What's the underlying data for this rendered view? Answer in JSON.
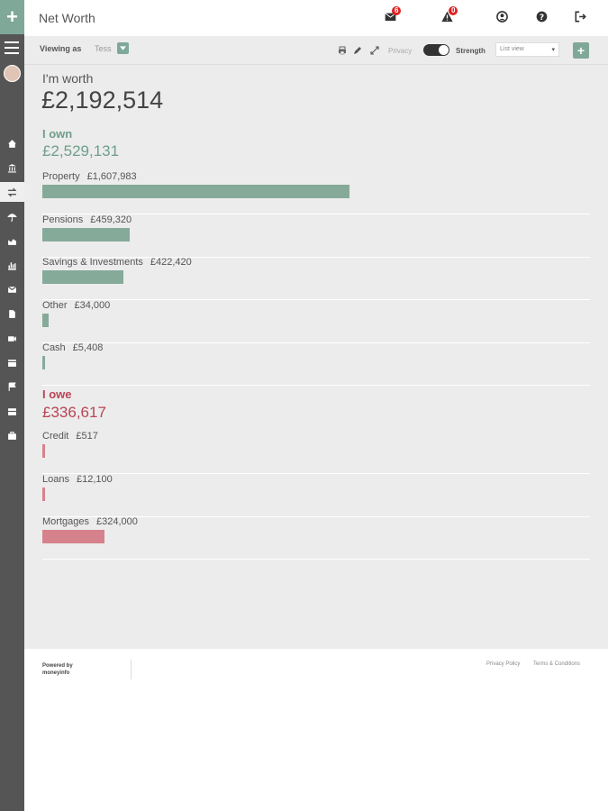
{
  "header": {
    "title": "Net Worth",
    "messages_badge": "6",
    "alerts_badge": "0"
  },
  "toolbar": {
    "viewing_label": "Viewing as",
    "viewing_name": "Tess",
    "privacy_label": "Privacy",
    "strength_label": "Strength",
    "view_select": "List view",
    "add_label": "+"
  },
  "summary": {
    "worth_label": "I'm worth",
    "worth_value": "£2,192,514"
  },
  "own": {
    "title": "I own",
    "total": "£2,529,131",
    "items": [
      {
        "label": "Property",
        "amount": "£1,607,983",
        "value": 1607983
      },
      {
        "label": "Pensions",
        "amount": "£459,320",
        "value": 459320
      },
      {
        "label": "Savings & Investments",
        "amount": "£422,420",
        "value": 422420
      },
      {
        "label": "Other",
        "amount": "£34,000",
        "value": 34000
      },
      {
        "label": "Cash",
        "amount": "£5,408",
        "value": 5408
      }
    ]
  },
  "owe": {
    "title": "I owe",
    "total": "£336,617",
    "items": [
      {
        "label": "Credit",
        "amount": "£517",
        "value": 517
      },
      {
        "label": "Loans",
        "amount": "£12,100",
        "value": 12100
      },
      {
        "label": "Mortgages",
        "amount": "£324,000",
        "value": 324000
      }
    ]
  },
  "footer": {
    "powered_line1": "Powered by",
    "powered_line2": "moneyinfo",
    "privacy_link": "Privacy Policy",
    "terms_link": "Terms & Conditions"
  },
  "colors": {
    "accent": "#7fa898",
    "own_bar": "#86aa9a",
    "owe_bar": "#d6828c",
    "owe_text": "#b84454",
    "sidebar": "#555555"
  }
}
